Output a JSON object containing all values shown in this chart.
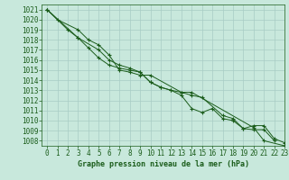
{
  "title": "Graphe pression niveau de la mer (hPa)",
  "xlim": [
    -0.5,
    23
  ],
  "ylim": [
    1007.5,
    1021.5
  ],
  "yticks": [
    1008,
    1009,
    1010,
    1011,
    1012,
    1013,
    1014,
    1015,
    1016,
    1017,
    1018,
    1019,
    1020,
    1021
  ],
  "xticks": [
    0,
    1,
    2,
    3,
    4,
    5,
    6,
    7,
    8,
    9,
    10,
    11,
    12,
    13,
    14,
    15,
    16,
    17,
    18,
    19,
    20,
    21,
    22,
    23
  ],
  "background_color": "#c8e8dc",
  "grid_color": "#a8ccc4",
  "line_color": "#1a5c1a",
  "title_color": "#1a5c1a",
  "series1": [
    1021.0,
    1020.0,
    null,
    1019.0,
    1018.0,
    1017.5,
    1016.5,
    1015.0,
    1014.8,
    1014.5,
    1014.5,
    null,
    null,
    1012.8,
    1012.8,
    null,
    null,
    null,
    null,
    null,
    1009.3,
    1008.0,
    null,
    1007.5
  ],
  "series2": [
    1021.0,
    null,
    1019.0,
    1018.2,
    1017.2,
    1016.2,
    1015.5,
    1015.2,
    1015.0,
    1014.8,
    1013.8,
    1013.3,
    1013.0,
    1012.8,
    1012.5,
    1012.3,
    null,
    1010.5,
    1010.2,
    1009.2,
    1009.1,
    1009.1,
    1008.0,
    null
  ],
  "series3": [
    1021.0,
    null,
    null,
    1018.2,
    null,
    1017.0,
    1016.0,
    1015.5,
    1015.2,
    1014.8,
    1013.8,
    1013.3,
    1013.0,
    1012.5,
    1011.2,
    1010.8,
    1011.2,
    1010.2,
    1010.0,
    1009.2,
    1009.5,
    1009.5,
    1008.2,
    1007.8
  ],
  "tick_fontsize": 5.5,
  "title_fontsize": 6.0
}
